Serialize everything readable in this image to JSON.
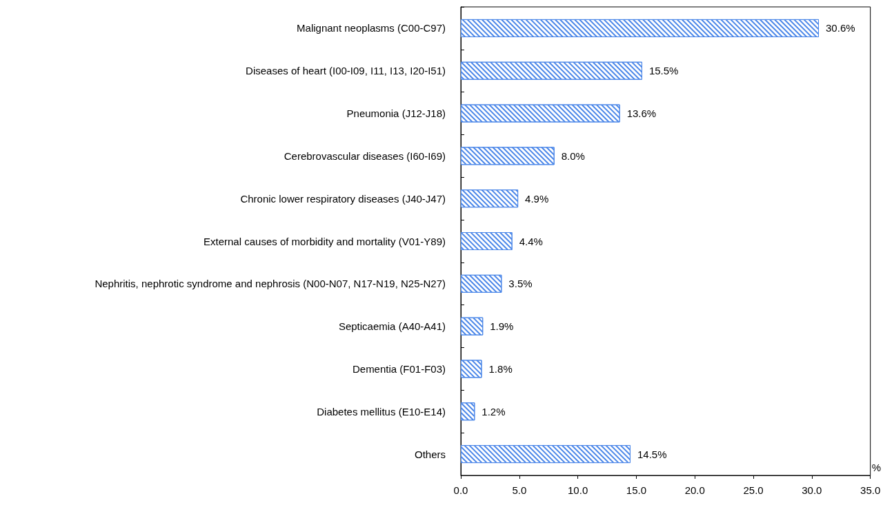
{
  "chart_data": {
    "type": "bar",
    "orientation": "horizontal",
    "xlabel": "%",
    "categories": [
      "Malignant neoplasms (C00-C97)",
      "Diseases of heart (I00-I09, I11, I13, I20-I51)",
      "Pneumonia (J12-J18)",
      "Cerebrovascular diseases (I60-I69)",
      "Chronic lower respiratory diseases (J40-J47)",
      "External causes of morbidity and mortality (V01-Y89)",
      "Nephritis, nephrotic syndrome and nephrosis (N00-N07, N17-N19, N25-N27)",
      "Septicaemia (A40-A41)",
      "Dementia (F01-F03)",
      "Diabetes mellitus (E10-E14)",
      "Others"
    ],
    "values": [
      30.6,
      15.5,
      13.6,
      8.0,
      4.9,
      4.4,
      3.5,
      1.9,
      1.8,
      1.2,
      14.5
    ],
    "value_labels": [
      "30.6%",
      "15.5%",
      "13.6%",
      "8.0%",
      "4.9%",
      "4.4%",
      "3.5%",
      "1.9%",
      "1.8%",
      "1.2%",
      "14.5%"
    ],
    "color": "#4a86e8",
    "xlim": [
      0,
      35
    ],
    "xticks": [
      {
        "value": 0,
        "label": "0.0"
      },
      {
        "value": 5,
        "label": "5.0"
      },
      {
        "value": 10,
        "label": "10.0"
      },
      {
        "value": 15,
        "label": "15.0"
      },
      {
        "value": 20,
        "label": "20.0"
      },
      {
        "value": 25,
        "label": "25.0"
      },
      {
        "value": 30,
        "label": "30.0"
      },
      {
        "value": 35,
        "label": "35.0"
      }
    ],
    "grid": false
  }
}
